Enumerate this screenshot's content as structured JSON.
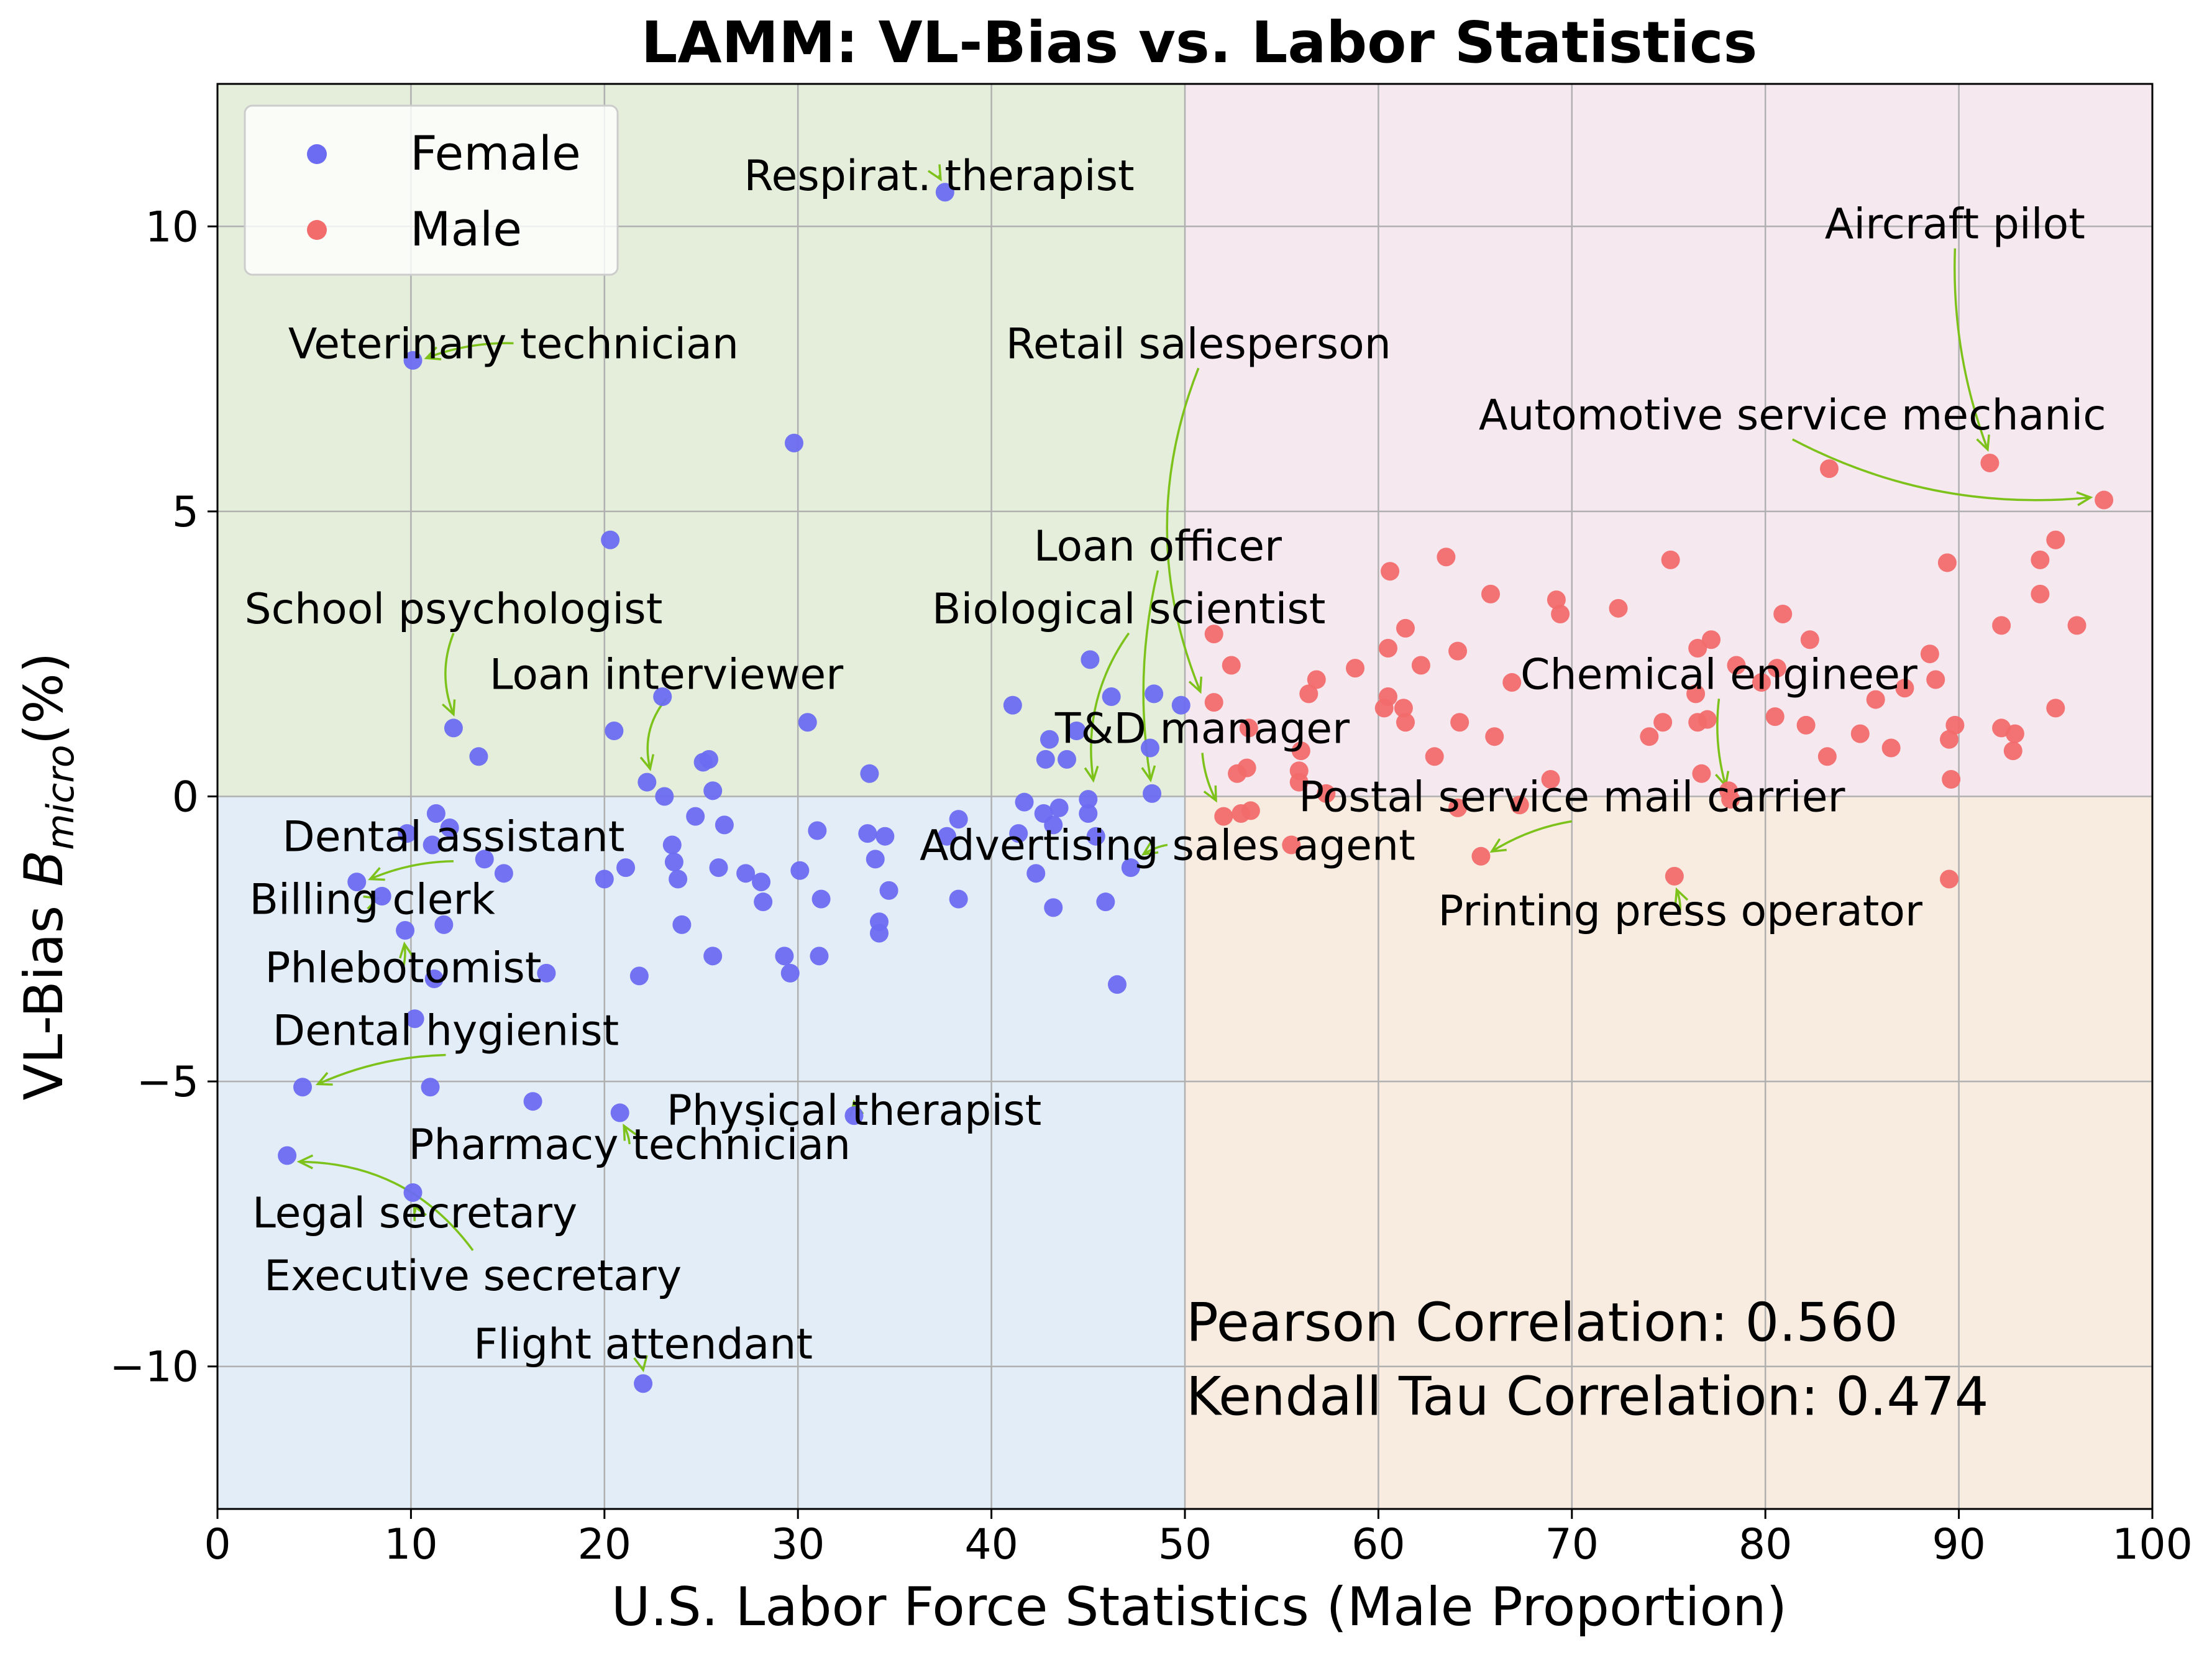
{
  "chart_data": {
    "type": "scatter",
    "title": "LAMM: VL-Bias vs. Labor Statistics",
    "xlabel": "U.S. Labor Force Statistics (Male Proportion)",
    "ylabel": "VL-Bias  B_micro(%)",
    "ylabel_main": "VL-Bias",
    "ylabel_symbol": "B",
    "ylabel_subscript": "micro",
    "ylabel_unit": "(%)",
    "xlim": [
      0,
      100
    ],
    "ylim": [
      -12.5,
      12.5
    ],
    "x_ticks": [
      0,
      10,
      20,
      30,
      40,
      50,
      60,
      70,
      80,
      90,
      100
    ],
    "y_ticks": [
      -10,
      -5,
      0,
      5,
      10
    ],
    "y_tick_labels": [
      "−10",
      "−5",
      "0",
      "5",
      "10"
    ],
    "grid": true,
    "legend_position": "top-left",
    "quadrants": [
      {
        "x": [
          0,
          50
        ],
        "y": [
          0,
          12.5
        ],
        "color": "#e4eedb"
      },
      {
        "x": [
          50,
          100
        ],
        "y": [
          0,
          12.5
        ],
        "color": "#f6e8ef"
      },
      {
        "x": [
          0,
          50
        ],
        "y": [
          -12.5,
          0
        ],
        "color": "#e2edf7"
      },
      {
        "x": [
          50,
          100
        ],
        "y": [
          -12.5,
          0
        ],
        "color": "#f8ece0"
      }
    ],
    "series": [
      {
        "name": "Female",
        "color": "#6c6cf2",
        "points": [
          [
            37.6,
            10.6
          ],
          [
            10.1,
            7.65
          ],
          [
            29.8,
            6.2
          ],
          [
            20.3,
            4.5
          ],
          [
            12.2,
            1.2
          ],
          [
            13.5,
            0.7
          ],
          [
            20.5,
            1.15
          ],
          [
            23.0,
            1.75
          ],
          [
            22.2,
            0.25
          ],
          [
            23.1,
            0.0
          ],
          [
            25.1,
            0.6
          ],
          [
            25.4,
            0.65
          ],
          [
            25.6,
            0.1
          ],
          [
            24.7,
            -0.35
          ],
          [
            26.2,
            -0.5
          ],
          [
            30.5,
            1.3
          ],
          [
            33.7,
            0.4
          ],
          [
            11.3,
            -0.3
          ],
          [
            12.0,
            -0.55
          ],
          [
            11.1,
            -0.85
          ],
          [
            9.8,
            -0.65
          ],
          [
            13.8,
            -1.1
          ],
          [
            14.8,
            -1.35
          ],
          [
            7.2,
            -1.5
          ],
          [
            8.5,
            -1.75
          ],
          [
            11.7,
            -2.25
          ],
          [
            9.7,
            -2.35
          ],
          [
            11.2,
            -3.2
          ],
          [
            17.0,
            -3.1
          ],
          [
            10.2,
            -3.9
          ],
          [
            21.1,
            -1.25
          ],
          [
            20.0,
            -1.45
          ],
          [
            23.5,
            -0.85
          ],
          [
            23.6,
            -1.15
          ],
          [
            23.8,
            -1.45
          ],
          [
            24.0,
            -2.25
          ],
          [
            25.6,
            -2.8
          ],
          [
            25.9,
            -1.25
          ],
          [
            27.3,
            -1.35
          ],
          [
            28.1,
            -1.5
          ],
          [
            28.2,
            -1.85
          ],
          [
            29.3,
            -2.8
          ],
          [
            29.6,
            -3.1
          ],
          [
            30.1,
            -1.3
          ],
          [
            31.0,
            -0.6
          ],
          [
            31.2,
            -1.8
          ],
          [
            31.1,
            -2.8
          ],
          [
            33.6,
            -0.65
          ],
          [
            34.0,
            -1.1
          ],
          [
            34.2,
            -2.2
          ],
          [
            34.2,
            -2.4
          ],
          [
            34.5,
            -0.7
          ],
          [
            34.7,
            -1.65
          ],
          [
            37.7,
            -0.7
          ],
          [
            38.3,
            -0.4
          ],
          [
            38.3,
            -1.8
          ],
          [
            21.8,
            -3.15
          ],
          [
            4.4,
            -5.1
          ],
          [
            11.0,
            -5.1
          ],
          [
            16.3,
            -5.35
          ],
          [
            3.6,
            -6.3
          ],
          [
            10.1,
            -6.95
          ],
          [
            20.8,
            -5.55
          ],
          [
            32.9,
            -5.6
          ],
          [
            22.0,
            -10.3
          ],
          [
            41.1,
            1.6
          ],
          [
            41.7,
            -0.1
          ],
          [
            41.4,
            -0.65
          ],
          [
            42.3,
            -1.35
          ],
          [
            42.7,
            -0.3
          ],
          [
            42.8,
            0.65
          ],
          [
            43.0,
            1.0
          ],
          [
            43.2,
            -0.5
          ],
          [
            43.2,
            -1.95
          ],
          [
            43.5,
            -0.2
          ],
          [
            43.9,
            0.65
          ],
          [
            44.4,
            1.15
          ],
          [
            45.0,
            -0.3
          ],
          [
            45.1,
            2.4
          ],
          [
            45.4,
            -0.7
          ],
          [
            45.9,
            -1.85
          ],
          [
            46.2,
            1.75
          ],
          [
            46.5,
            -3.3
          ],
          [
            47.2,
            -1.25
          ],
          [
            48.2,
            0.85
          ],
          [
            48.4,
            1.8
          ],
          [
            48.3,
            0.05
          ],
          [
            49.8,
            1.6
          ],
          [
            45.0,
            -0.05
          ]
        ]
      },
      {
        "name": "Male",
        "color": "#f26c6c",
        "points": [
          [
            97.5,
            5.2
          ],
          [
            91.6,
            5.85
          ],
          [
            83.3,
            5.75
          ],
          [
            95.0,
            4.5
          ],
          [
            94.2,
            4.15
          ],
          [
            89.4,
            4.1
          ],
          [
            94.2,
            3.55
          ],
          [
            96.1,
            3.0
          ],
          [
            92.2,
            3.0
          ],
          [
            88.5,
            2.5
          ],
          [
            88.8,
            2.05
          ],
          [
            87.2,
            1.9
          ],
          [
            85.7,
            1.7
          ],
          [
            84.9,
            1.1
          ],
          [
            86.5,
            0.85
          ],
          [
            83.2,
            0.7
          ],
          [
            82.1,
            1.25
          ],
          [
            80.9,
            3.2
          ],
          [
            82.3,
            2.75
          ],
          [
            80.5,
            1.4
          ],
          [
            80.6,
            2.25
          ],
          [
            79.8,
            2.0
          ],
          [
            78.5,
            2.3
          ],
          [
            77.2,
            2.75
          ],
          [
            76.5,
            2.6
          ],
          [
            76.4,
            1.8
          ],
          [
            76.5,
            1.3
          ],
          [
            77.0,
            1.35
          ],
          [
            76.7,
            0.4
          ],
          [
            78.1,
            0.1
          ],
          [
            78.2,
            -0.05
          ],
          [
            75.1,
            4.15
          ],
          [
            74.7,
            1.3
          ],
          [
            74.0,
            1.05
          ],
          [
            75.3,
            -1.4
          ],
          [
            72.4,
            3.3
          ],
          [
            69.2,
            3.45
          ],
          [
            69.4,
            3.2
          ],
          [
            68.9,
            0.3
          ],
          [
            67.3,
            -0.15
          ],
          [
            66.9,
            2.0
          ],
          [
            66.0,
            1.05
          ],
          [
            65.8,
            3.55
          ],
          [
            65.3,
            -1.05
          ],
          [
            64.1,
            -0.2
          ],
          [
            64.1,
            2.55
          ],
          [
            64.2,
            1.3
          ],
          [
            63.5,
            4.2
          ],
          [
            62.2,
            2.3
          ],
          [
            62.9,
            0.7
          ],
          [
            61.4,
            2.95
          ],
          [
            61.3,
            1.55
          ],
          [
            61.4,
            1.3
          ],
          [
            60.6,
            3.95
          ],
          [
            60.5,
            2.6
          ],
          [
            60.5,
            1.75
          ],
          [
            60.3,
            1.55
          ],
          [
            58.8,
            2.25
          ],
          [
            57.3,
            0.05
          ],
          [
            56.8,
            2.05
          ],
          [
            56.4,
            1.8
          ],
          [
            56.0,
            0.8
          ],
          [
            55.9,
            0.45
          ],
          [
            55.9,
            0.25
          ],
          [
            55.5,
            -0.85
          ],
          [
            53.4,
            -0.25
          ],
          [
            53.2,
            0.5
          ],
          [
            53.3,
            1.2
          ],
          [
            52.9,
            -0.3
          ],
          [
            52.7,
            0.4
          ],
          [
            52.4,
            2.3
          ],
          [
            51.5,
            2.85
          ],
          [
            52.0,
            -0.35
          ],
          [
            51.5,
            1.65
          ],
          [
            89.6,
            0.3
          ],
          [
            89.5,
            1.0
          ],
          [
            89.5,
            -1.45
          ],
          [
            89.8,
            1.25
          ],
          [
            92.2,
            1.2
          ],
          [
            92.8,
            0.8
          ],
          [
            92.9,
            1.1
          ],
          [
            95.0,
            1.55
          ]
        ]
      }
    ],
    "annotations": [
      {
        "label": "Respirat. therapist",
        "point": [
          37.6,
          10.6
        ],
        "text_at": [
          37.3,
          10.9
        ],
        "curve": 0.1
      },
      {
        "label": "Veterinary technician",
        "point": [
          10.1,
          7.65
        ],
        "text_at": [
          15.3,
          7.95
        ],
        "curve": 0.1
      },
      {
        "label": "Retail salesperson",
        "point": [
          50.8,
          1.6
        ],
        "text_at": [
          50.7,
          7.95
        ],
        "curve": 0.2
      },
      {
        "label": "Aircraft pilot",
        "point": [
          91.6,
          5.85
        ],
        "text_at": [
          89.8,
          10.05
        ],
        "curve": 0.1
      },
      {
        "label": "Automotive service mechanic",
        "point": [
          97.5,
          5.2
        ],
        "text_at": [
          81.4,
          6.7
        ],
        "curve": 0.15
      },
      {
        "label": "Loan officer",
        "point": [
          48.2,
          0.05
        ],
        "text_at": [
          48.6,
          4.4
        ],
        "curve": 0.1
      },
      {
        "label": "School psychologist",
        "point": [
          12.2,
          1.2
        ],
        "text_at": [
          12.2,
          3.3
        ],
        "curve": 0.2
      },
      {
        "label": "Biological scientist",
        "point": [
          45.1,
          0.05
        ],
        "text_at": [
          47.1,
          3.3
        ],
        "curve": 0.2
      },
      {
        "label": "Loan interviewer",
        "point": [
          22.2,
          0.25
        ],
        "text_at": [
          23.2,
          2.15
        ],
        "curve": 0.25
      },
      {
        "label": "Chemical engineer",
        "point": [
          78.0,
          -0.05
        ],
        "text_at": [
          77.6,
          2.15
        ],
        "curve": 0.1
      },
      {
        "label": "T&D manager",
        "point": [
          51.8,
          -0.3
        ],
        "text_at": [
          50.9,
          1.2
        ],
        "curve": 0.1
      },
      {
        "label": "Postal service mail carrier",
        "point": [
          65.2,
          -1.05
        ],
        "text_at": [
          70.0,
          0.0
        ],
        "curve": 0.1
      },
      {
        "label": "Dental assistant",
        "point": [
          7.2,
          -1.5
        ],
        "text_at": [
          12.2,
          -0.7
        ],
        "curve": 0.1
      },
      {
        "label": "Advertising sales agent",
        "point": [
          47.2,
          -1.1
        ],
        "text_at": [
          49.1,
          -0.85
        ],
        "curve": 0.1
      },
      {
        "label": "Billing clerk",
        "point": [
          9.0,
          -1.75
        ],
        "text_at": [
          8.0,
          -1.8
        ],
        "curve": 0.1
      },
      {
        "label": "Printing press operator",
        "point": [
          75.3,
          -1.4
        ],
        "text_at": [
          75.6,
          -2.0
        ],
        "curve": 0.1
      },
      {
        "label": "Phlebotomist",
        "point": [
          9.7,
          -2.35
        ],
        "text_at": [
          9.6,
          -3.0
        ],
        "curve": 0.1
      },
      {
        "label": "Dental hygienist",
        "point": [
          4.5,
          -5.1
        ],
        "text_at": [
          11.8,
          -4.1
        ],
        "curve": 0.1
      },
      {
        "label": "Physical therapist",
        "point": [
          32.9,
          -5.6
        ],
        "text_at": [
          32.9,
          -5.5
        ],
        "curve": 0.1
      },
      {
        "label": "Pharmacy technician",
        "point": [
          20.8,
          -5.55
        ],
        "text_at": [
          21.3,
          -6.1
        ],
        "curve": 0.1
      },
      {
        "label": "Legal secretary",
        "point": [
          10.1,
          -6.95
        ],
        "text_at": [
          10.2,
          -7.3
        ],
        "curve": 0.2
      },
      {
        "label": "Executive secretary",
        "point": [
          3.6,
          -6.3
        ],
        "text_at": [
          13.2,
          -8.4
        ],
        "curve": 0.25
      },
      {
        "label": "Flight attendant",
        "point": [
          22.0,
          -10.3
        ],
        "text_at": [
          22.0,
          -9.6
        ],
        "curve": 0.1
      }
    ],
    "stats_text": [
      "Pearson Correlation: 0.560",
      "Kendall Tau Correlation: 0.474"
    ]
  }
}
